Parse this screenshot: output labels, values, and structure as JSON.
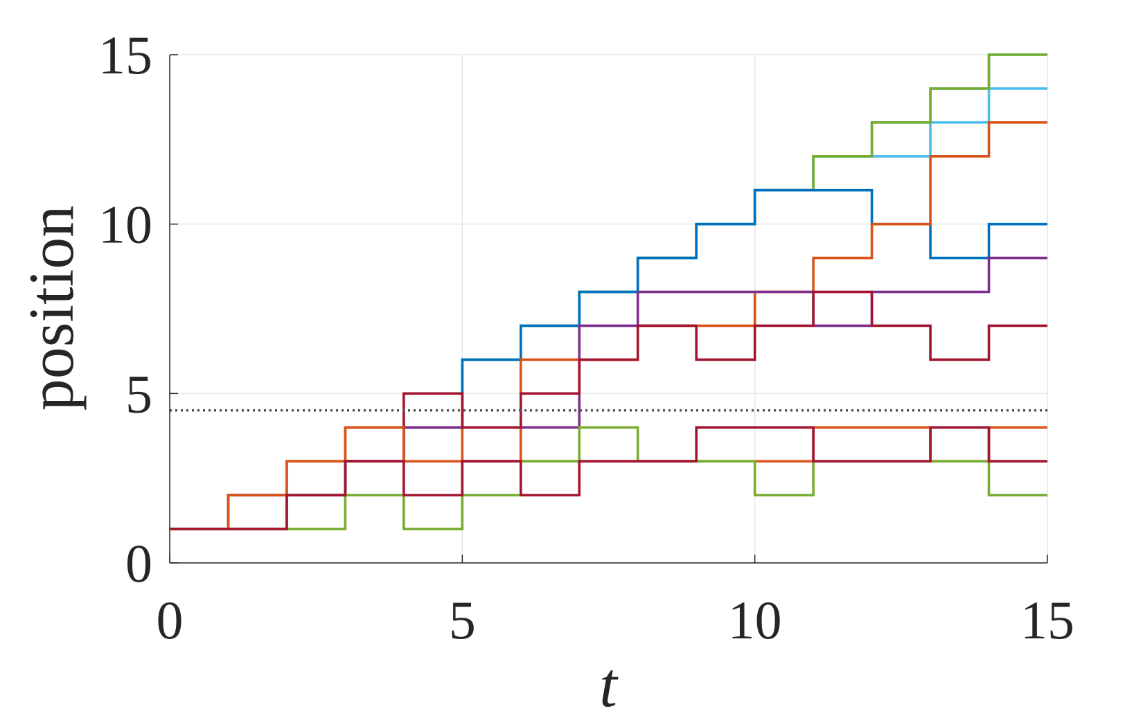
{
  "chart_data": {
    "type": "line",
    "step": true,
    "title": "",
    "xlabel": "t",
    "ylabel": "position",
    "xlim": [
      0,
      15
    ],
    "ylim": [
      0,
      15
    ],
    "xticks": [
      0,
      5,
      10,
      15
    ],
    "yticks": [
      0,
      5,
      10,
      15
    ],
    "xtick_labels": [
      "0",
      "5",
      "10",
      "15"
    ],
    "ytick_labels": [
      "0",
      "5",
      "10",
      "15"
    ],
    "grid": true,
    "reference_line": {
      "y": 4.5,
      "style": "dotted",
      "color": "#555555"
    },
    "series": [
      {
        "color": "#4DBEEE",
        "values": [
          1,
          2,
          2,
          3,
          4,
          6,
          7,
          8,
          9,
          10,
          11,
          12,
          13,
          14,
          15
        ]
      },
      {
        "color": "#4DBEEE",
        "values": [
          1,
          2,
          2,
          3,
          4,
          6,
          7,
          8,
          9,
          10,
          11,
          12,
          12,
          13,
          14
        ]
      },
      {
        "color": "#77AC30",
        "values": [
          1,
          2,
          2,
          3,
          4,
          6,
          7,
          8,
          9,
          10,
          11,
          12,
          13,
          14,
          15
        ]
      },
      {
        "color": "#0072BD",
        "values": [
          1,
          2,
          2,
          3,
          4,
          6,
          7,
          8,
          9,
          10,
          11,
          11,
          10,
          9,
          10
        ]
      },
      {
        "color": "#D95319",
        "values": [
          1,
          2,
          3,
          4,
          4,
          3,
          6,
          6,
          7,
          7,
          8,
          9,
          10,
          12,
          13
        ]
      },
      {
        "color": "#7E2F8E",
        "values": [
          1,
          2,
          2,
          3,
          4,
          4,
          4,
          7,
          8,
          8,
          8,
          7,
          8,
          8,
          9
        ]
      },
      {
        "color": "#A2142F",
        "values": [
          1,
          1,
          2,
          3,
          5,
          4,
          5,
          6,
          7,
          6,
          7,
          8,
          7,
          6,
          7
        ]
      },
      {
        "color": "#D95319",
        "values": [
          1,
          2,
          3,
          4,
          3,
          3,
          3,
          3,
          3,
          3,
          3,
          4,
          4,
          3,
          4
        ]
      },
      {
        "color": "#77AC30",
        "values": [
          1,
          1,
          1,
          2,
          1,
          2,
          3,
          4,
          3,
          3,
          2,
          3,
          3,
          3,
          2
        ]
      },
      {
        "color": "#A2142F",
        "values": [
          1,
          1,
          2,
          3,
          2,
          3,
          2,
          3,
          3,
          4,
          4,
          3,
          3,
          4,
          3
        ]
      }
    ]
  }
}
